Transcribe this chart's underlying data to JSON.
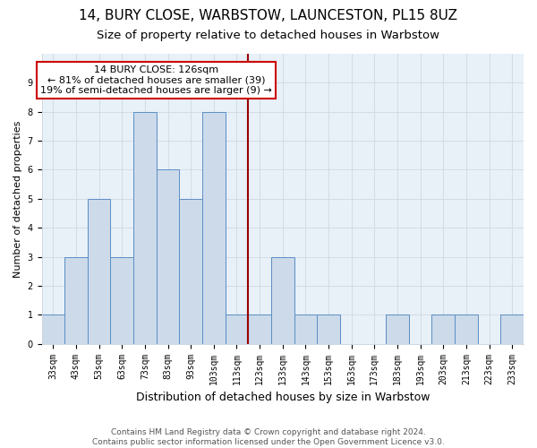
{
  "title": "14, BURY CLOSE, WARBSTOW, LAUNCESTON, PL15 8UZ",
  "subtitle": "Size of property relative to detached houses in Warbstow",
  "xlabel": "Distribution of detached houses by size in Warbstow",
  "ylabel": "Number of detached properties",
  "categories": [
    "33sqm",
    "43sqm",
    "53sqm",
    "63sqm",
    "73sqm",
    "83sqm",
    "93sqm",
    "103sqm",
    "113sqm",
    "123sqm",
    "133sqm",
    "143sqm",
    "153sqm",
    "163sqm",
    "173sqm",
    "183sqm",
    "193sqm",
    "203sqm",
    "213sqm",
    "223sqm",
    "233sqm"
  ],
  "values": [
    1,
    3,
    5,
    3,
    8,
    6,
    5,
    8,
    1,
    1,
    3,
    1,
    1,
    0,
    0,
    1,
    0,
    1,
    1,
    0,
    1
  ],
  "bar_color": "#ccdaea",
  "bar_edge_color": "#5b8ec4",
  "vline_x_index": 9,
  "vline_color": "#990000",
  "annotation_text": "14 BURY CLOSE: 126sqm\n← 81% of detached houses are smaller (39)\n19% of semi-detached houses are larger (9) →",
  "annotation_box_color": "#ffffff",
  "annotation_box_edge": "#cc0000",
  "ylim": [
    0,
    10
  ],
  "yticks": [
    0,
    1,
    2,
    3,
    4,
    5,
    6,
    7,
    8,
    9,
    10
  ],
  "grid_color": "#d0d8e0",
  "background_color": "#e8f0f8",
  "footer_text": "Contains HM Land Registry data © Crown copyright and database right 2024.\nContains public sector information licensed under the Open Government Licence v3.0.",
  "title_fontsize": 11,
  "subtitle_fontsize": 9.5,
  "xlabel_fontsize": 9,
  "ylabel_fontsize": 8,
  "tick_fontsize": 7,
  "footer_fontsize": 6.5,
  "annot_fontsize": 8
}
